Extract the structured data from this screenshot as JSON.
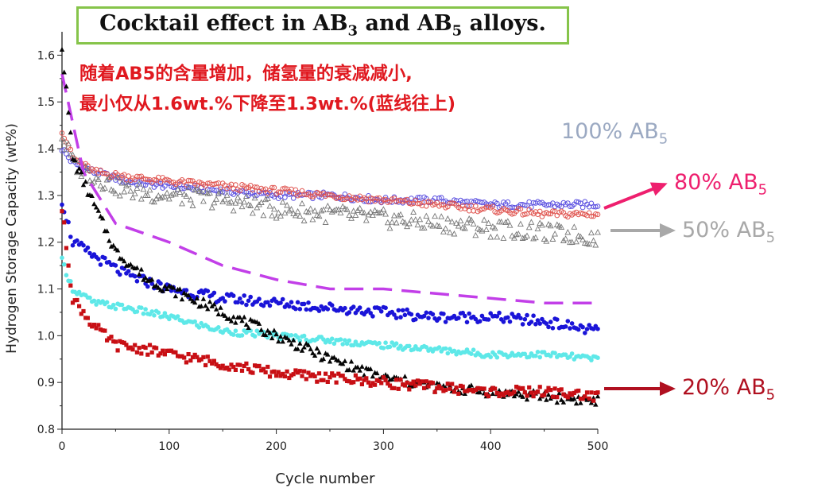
{
  "title": {
    "main": "Cocktail effect in AB",
    "sub3": "3",
    "and": " and AB",
    "sub5": "5",
    "tail": " alloys."
  },
  "annotation": {
    "line1": "随着AB5的含量增加，储氢量的衰减减小,",
    "line2": "最小仅从1.6wt.%下降至1.3wt.%(蓝线往上)"
  },
  "labels": [
    {
      "id": "label-100",
      "text": "100% AB",
      "sub": "5",
      "color": "#9ba9c2",
      "arrow": false
    },
    {
      "id": "label-80",
      "text": "80% AB",
      "sub": "5",
      "color": "#ee1f6e",
      "arrow": true
    },
    {
      "id": "label-50",
      "text": "50% AB",
      "sub": "5",
      "color": "#a8a8a8",
      "arrow": true
    },
    {
      "id": "label-20",
      "text": "20% AB",
      "sub": "5",
      "color": "#b01020",
      "arrow": true
    }
  ],
  "chart_data": {
    "type": "scatter",
    "xlabel": "Cycle number",
    "ylabel": "Hydrogen Storage Capacity (wt%)",
    "xlim": [
      0,
      500
    ],
    "ylim": [
      0.8,
      1.65
    ],
    "xticks": [
      "0",
      "100",
      "200",
      "300",
      "400",
      "500"
    ],
    "yticks": [
      "0.8",
      "0.9",
      "1.0",
      "1.1",
      "1.2",
      "1.3",
      "1.4",
      "1.5",
      "1.6"
    ],
    "series": [
      {
        "key": "s100",
        "color": "#5a4fe0",
        "marker": "open-circle",
        "x": [
          0,
          10,
          30,
          60,
          100,
          150,
          200,
          250,
          300,
          350,
          400,
          450,
          500
        ],
        "y": [
          1.4,
          1.37,
          1.35,
          1.33,
          1.32,
          1.31,
          1.3,
          1.3,
          1.29,
          1.29,
          1.28,
          1.28,
          1.28
        ]
      },
      {
        "key": "s80",
        "color": "#e05550",
        "marker": "open-circle",
        "x": [
          0,
          10,
          30,
          60,
          100,
          150,
          200,
          250,
          300,
          350,
          400,
          450,
          500
        ],
        "y": [
          1.44,
          1.38,
          1.35,
          1.34,
          1.33,
          1.32,
          1.31,
          1.3,
          1.29,
          1.28,
          1.27,
          1.26,
          1.26
        ]
      },
      {
        "key": "s50",
        "color": "#777777",
        "marker": "open-triangle",
        "x": [
          0,
          10,
          30,
          60,
          100,
          150,
          200,
          250,
          300,
          350,
          400,
          450,
          500
        ],
        "y": [
          1.43,
          1.37,
          1.34,
          1.31,
          1.3,
          1.29,
          1.27,
          1.26,
          1.25,
          1.24,
          1.23,
          1.22,
          1.21
        ]
      },
      {
        "key": "dashed",
        "color": "#c23fe8",
        "marker": "dashed-line",
        "x": [
          0,
          20,
          50,
          100,
          150,
          200,
          250,
          300,
          350,
          400,
          450,
          500
        ],
        "y": [
          1.56,
          1.35,
          1.24,
          1.2,
          1.15,
          1.12,
          1.1,
          1.1,
          1.09,
          1.08,
          1.07,
          1.07
        ]
      },
      {
        "key": "blue",
        "color": "#1a14d8",
        "marker": "filled-circle",
        "x": [
          0,
          10,
          30,
          60,
          100,
          150,
          200,
          250,
          300,
          350,
          400,
          450,
          500
        ],
        "y": [
          1.29,
          1.2,
          1.17,
          1.13,
          1.1,
          1.08,
          1.07,
          1.06,
          1.05,
          1.04,
          1.04,
          1.03,
          1.01
        ]
      },
      {
        "key": "cyan",
        "color": "#5ee8e8",
        "marker": "filled-circle",
        "x": [
          0,
          10,
          30,
          60,
          100,
          150,
          200,
          250,
          300,
          350,
          400,
          450,
          500
        ],
        "y": [
          1.16,
          1.1,
          1.07,
          1.06,
          1.04,
          1.01,
          1.0,
          0.99,
          0.98,
          0.97,
          0.96,
          0.96,
          0.95
        ]
      },
      {
        "key": "black",
        "color": "#050505",
        "marker": "filled-triangle",
        "x": [
          0,
          10,
          30,
          50,
          80,
          100,
          150,
          200,
          250,
          300,
          350,
          400,
          450,
          500
        ],
        "y": [
          1.62,
          1.38,
          1.28,
          1.18,
          1.12,
          1.1,
          1.05,
          1.0,
          0.95,
          0.91,
          0.89,
          0.88,
          0.87,
          0.86
        ]
      },
      {
        "key": "red",
        "color": "#c80f14",
        "marker": "filled-square",
        "x": [
          0,
          10,
          30,
          50,
          80,
          100,
          150,
          200,
          250,
          300,
          350,
          400,
          450,
          500
        ],
        "y": [
          1.27,
          1.08,
          1.02,
          0.98,
          0.97,
          0.96,
          0.94,
          0.92,
          0.91,
          0.9,
          0.89,
          0.88,
          0.88,
          0.87
        ]
      }
    ]
  }
}
